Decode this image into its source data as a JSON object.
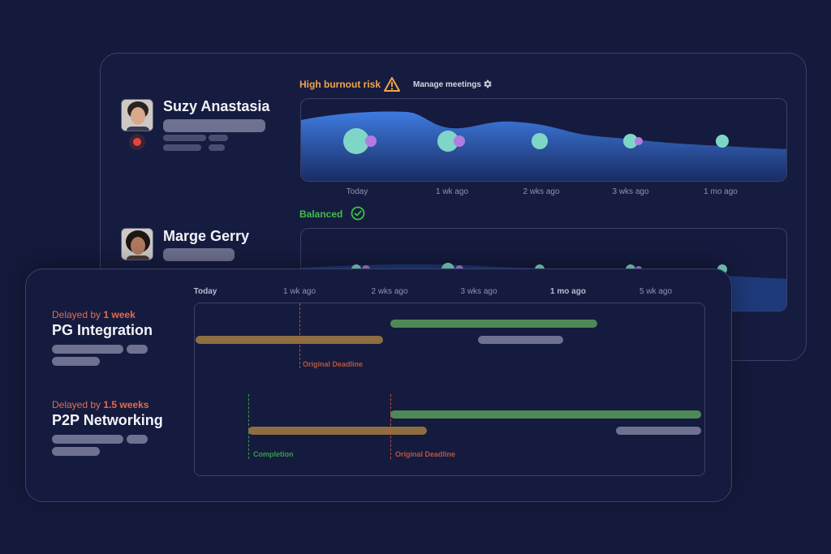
{
  "back_panel": {
    "people": [
      {
        "name": "Suzy Anastasia",
        "status_label": "High burnout risk",
        "status_icon": "warning-icon",
        "status_color": "#f0a64a",
        "manage_label": "Manage meetings",
        "manage_icon": "gear-icon",
        "ticks": [
          "Today",
          "1 wk ago",
          "2 wks ago",
          "3 wks ago",
          "1 mo ago"
        ]
      },
      {
        "name": "Marge Gerry",
        "status_label": "Balanced",
        "status_icon": "check-circle-icon",
        "status_color": "#3fbf45"
      }
    ]
  },
  "front_panel": {
    "ticks": [
      "Today",
      "1 wk ago",
      "2 wks ago",
      "3 wks ago",
      "1 mo ago",
      "5 wk ago"
    ],
    "projects": [
      {
        "delay_prefix": "Delayed by ",
        "delay_amount": "1 week",
        "title": "PG Integration",
        "marker_label": "Original Deadline"
      },
      {
        "delay_prefix": "Delayed by ",
        "delay_amount": "1.5 weeks",
        "title": "P2P Networking",
        "completion_label": "Completion",
        "marker_label": "Original Deadline"
      }
    ]
  },
  "colors": {
    "background": "#141a3c",
    "accent_teal": "#7fd6c6",
    "accent_purple": "#b47be0",
    "bar_green": "#4f8a56",
    "bar_amber": "#8e6e40",
    "bar_gray": "#6e7190",
    "delay_orange": "#e86a4a"
  }
}
